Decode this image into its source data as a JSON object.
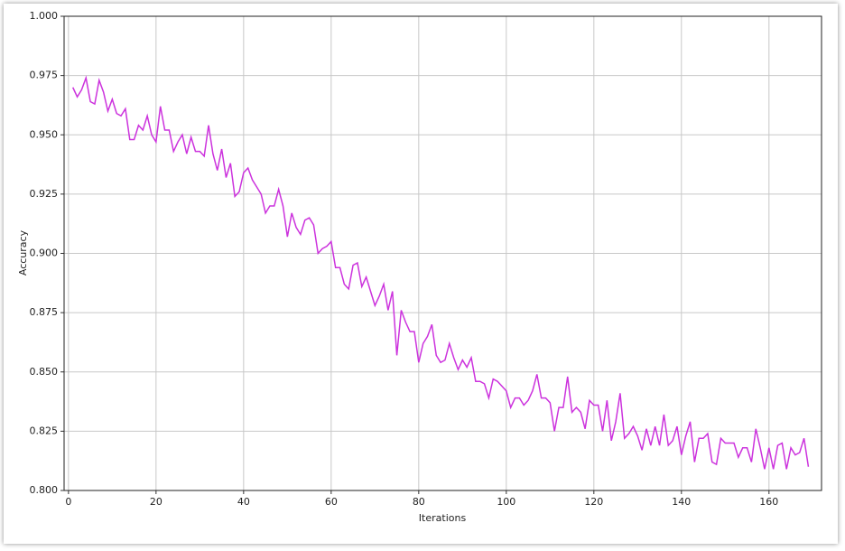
{
  "chart_data": {
    "type": "line",
    "x_label": "Iterations",
    "y_label": "Accuracy",
    "color": "#cc33dd",
    "grid": true,
    "xlim": [
      -1,
      172
    ],
    "ylim": [
      0.8,
      1.0
    ],
    "xticks": [
      0,
      20,
      40,
      60,
      80,
      100,
      120,
      140,
      160
    ],
    "yticks": [
      {
        "value": 0.8,
        "label": "0.800"
      },
      {
        "value": 0.825,
        "label": "0.825"
      },
      {
        "value": 0.85,
        "label": "0.850"
      },
      {
        "value": 0.875,
        "label": "0.875"
      },
      {
        "value": 0.9,
        "label": "0.900"
      },
      {
        "value": 0.925,
        "label": "0.925"
      },
      {
        "value": 0.95,
        "label": "0.950"
      },
      {
        "value": 0.975,
        "label": "0.975"
      },
      {
        "value": 1.0,
        "label": "1.000"
      }
    ],
    "x": [
      1,
      2,
      3,
      4,
      5,
      6,
      7,
      8,
      9,
      10,
      11,
      12,
      13,
      14,
      15,
      16,
      17,
      18,
      19,
      20,
      21,
      22,
      23,
      24,
      25,
      26,
      27,
      28,
      29,
      30,
      31,
      32,
      33,
      34,
      35,
      36,
      37,
      38,
      39,
      40,
      41,
      42,
      43,
      44,
      45,
      46,
      47,
      48,
      49,
      50,
      51,
      52,
      53,
      54,
      55,
      56,
      57,
      58,
      59,
      60,
      61,
      62,
      63,
      64,
      65,
      66,
      67,
      68,
      69,
      70,
      71,
      72,
      73,
      74,
      75,
      76,
      77,
      78,
      79,
      80,
      81,
      82,
      83,
      84,
      85,
      86,
      87,
      88,
      89,
      90,
      91,
      92,
      93,
      94,
      95,
      96,
      97,
      98,
      99,
      100,
      101,
      102,
      103,
      104,
      105,
      106,
      107,
      108,
      109,
      110,
      111,
      112,
      113,
      114,
      115,
      116,
      117,
      118,
      119,
      120,
      121,
      122,
      123,
      124,
      125,
      126,
      127,
      128,
      129,
      130,
      131,
      132,
      133,
      134,
      135,
      136,
      137,
      138,
      139,
      140,
      141,
      142,
      143,
      144,
      145,
      146,
      147,
      148,
      149,
      150,
      151,
      152,
      153,
      154,
      155,
      156,
      157,
      158,
      159,
      160,
      161,
      162,
      163,
      164,
      165,
      166,
      167,
      168,
      169
    ],
    "values": [
      0.97,
      0.966,
      0.969,
      0.974,
      0.964,
      0.963,
      0.973,
      0.968,
      0.96,
      0.965,
      0.959,
      0.958,
      0.961,
      0.948,
      0.948,
      0.954,
      0.952,
      0.958,
      0.95,
      0.947,
      0.962,
      0.952,
      0.952,
      0.943,
      0.947,
      0.95,
      0.942,
      0.949,
      0.943,
      0.943,
      0.941,
      0.954,
      0.942,
      0.935,
      0.944,
      0.932,
      0.938,
      0.924,
      0.926,
      0.934,
      0.936,
      0.931,
      0.928,
      0.925,
      0.917,
      0.92,
      0.92,
      0.927,
      0.92,
      0.907,
      0.917,
      0.911,
      0.908,
      0.914,
      0.915,
      0.912,
      0.9,
      0.902,
      0.903,
      0.905,
      0.894,
      0.894,
      0.887,
      0.885,
      0.895,
      0.896,
      0.886,
      0.89,
      0.884,
      0.878,
      0.882,
      0.887,
      0.876,
      0.884,
      0.857,
      0.876,
      0.871,
      0.867,
      0.867,
      0.854,
      0.862,
      0.865,
      0.87,
      0.857,
      0.854,
      0.855,
      0.862,
      0.856,
      0.851,
      0.855,
      0.852,
      0.856,
      0.846,
      0.846,
      0.845,
      0.839,
      0.847,
      0.846,
      0.844,
      0.842,
      0.835,
      0.839,
      0.839,
      0.836,
      0.838,
      0.842,
      0.849,
      0.839,
      0.839,
      0.837,
      0.825,
      0.835,
      0.835,
      0.848,
      0.833,
      0.835,
      0.833,
      0.826,
      0.838,
      0.836,
      0.836,
      0.825,
      0.838,
      0.821,
      0.829,
      0.841,
      0.822,
      0.824,
      0.827,
      0.823,
      0.817,
      0.826,
      0.819,
      0.827,
      0.819,
      0.832,
      0.819,
      0.821,
      0.827,
      0.815,
      0.823,
      0.829,
      0.812,
      0.822,
      0.822,
      0.824,
      0.812,
      0.811,
      0.822,
      0.82,
      0.82,
      0.82,
      0.814,
      0.818,
      0.818,
      0.812,
      0.826,
      0.818,
      0.809,
      0.818,
      0.809,
      0.819,
      0.82,
      0.809,
      0.818,
      0.815,
      0.816,
      0.822,
      0.81
    ]
  }
}
